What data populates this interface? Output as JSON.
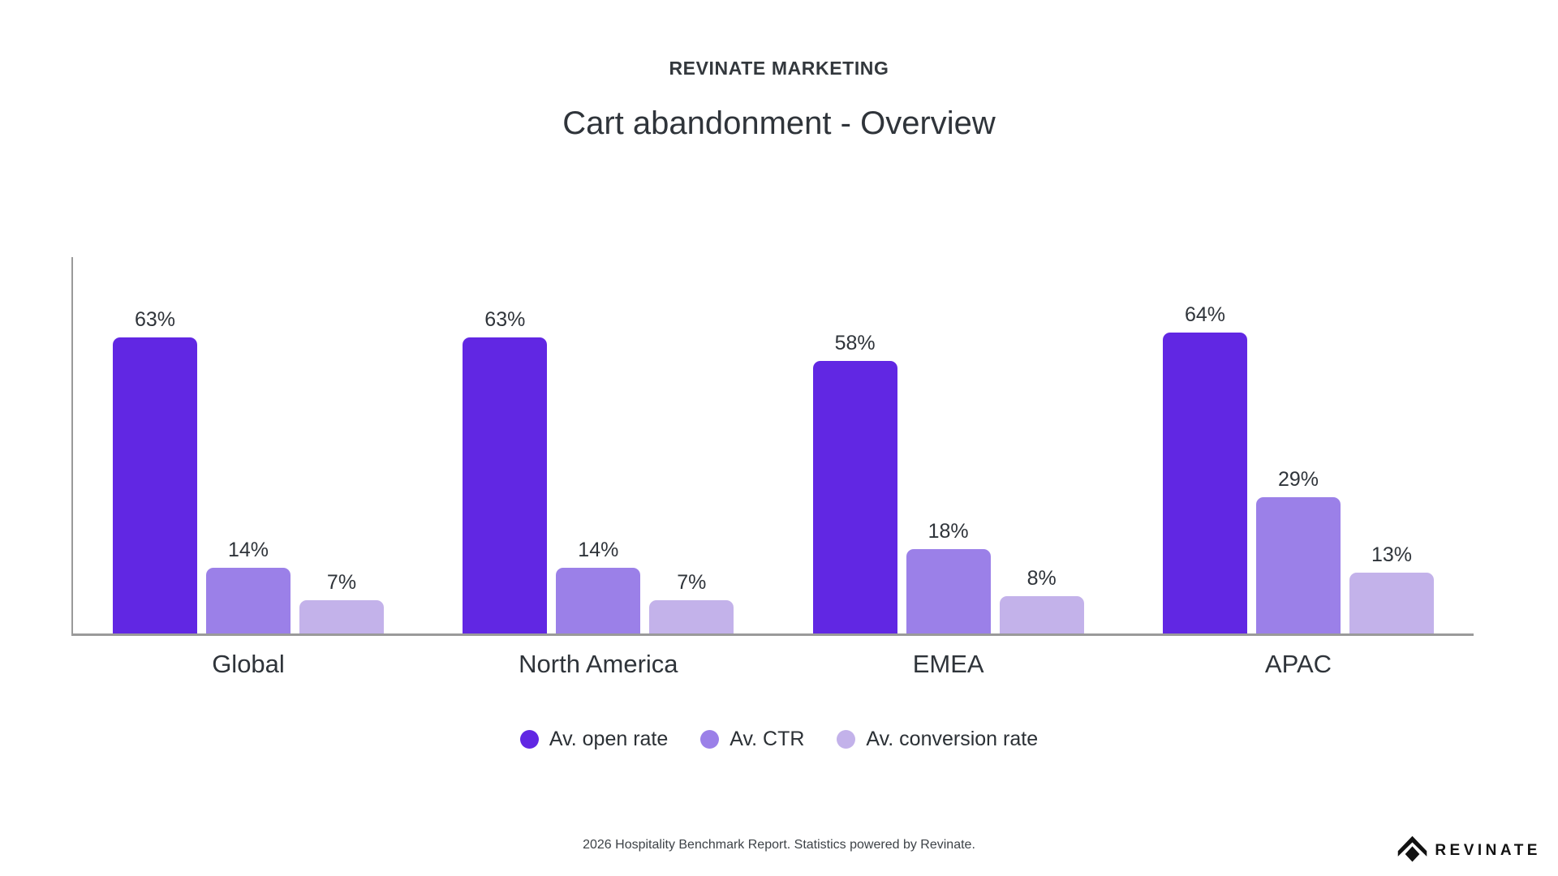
{
  "header": {
    "eyebrow": "REVINATE MARKETING",
    "title": "Cart abandonment - Overview"
  },
  "chart_data": {
    "type": "bar",
    "title": "Cart abandonment - Overview",
    "categories": [
      "Global",
      "North America",
      "EMEA",
      "APAC"
    ],
    "series": [
      {
        "name": "Av. open rate",
        "color": "#6127e3",
        "values": [
          63,
          63,
          58,
          64
        ]
      },
      {
        "name": "Av. CTR",
        "color": "#9b80e8",
        "values": [
          14,
          14,
          18,
          29
        ]
      },
      {
        "name": "Av. conversion rate",
        "color": "#c3b2ea",
        "values": [
          7,
          7,
          8,
          13
        ]
      }
    ],
    "value_suffix": "%",
    "ylim": [
      0,
      80
    ],
    "grid": false,
    "legend_position": "bottom",
    "axis_color": "#9a9a9a"
  },
  "footer": {
    "note": "2026 Hospitality Benchmark Report. Statistics powered by Revinate.",
    "brand": "REVINATE"
  }
}
